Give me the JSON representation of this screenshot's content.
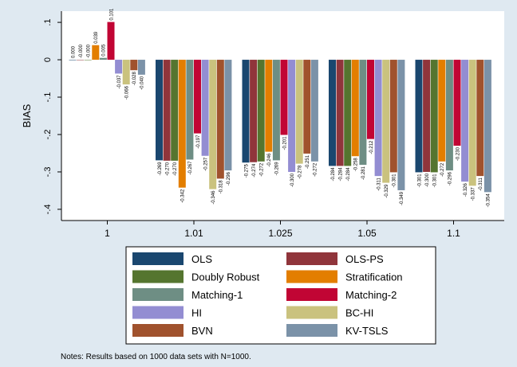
{
  "chart_data": {
    "type": "bar",
    "ylabel": "BIAS",
    "xlabel": "",
    "ylim": [
      -0.43,
      0.13
    ],
    "yticks": [
      0.1,
      0,
      -0.1,
      -0.2,
      -0.3,
      -0.4
    ],
    "ytick_labels": [
      ".1",
      "0",
      "-.1",
      "-.2",
      "-.3",
      "-.4"
    ],
    "categories": [
      "1",
      "1.01",
      "1.025",
      "1.05",
      "1.1"
    ],
    "legend_placement": "bottom",
    "series": [
      {
        "name": "OLS",
        "color": "#1a476f",
        "values": [
          0.0,
          -0.269,
          -0.275,
          -0.284,
          -0.301
        ],
        "labels": [
          "0.000",
          "-0.269",
          "-0.275",
          "-0.284",
          "-0.301"
        ]
      },
      {
        "name": "OLS-PS",
        "color": "#90353b",
        "values": [
          -0.0,
          -0.27,
          -0.274,
          -0.284,
          -0.3
        ],
        "labels": [
          "-0.000",
          "-0.270",
          "-0.274",
          "-0.284",
          "-0.300"
        ]
      },
      {
        "name": "Doubly Robust",
        "color": "#55752f",
        "values": [
          -0.0,
          -0.27,
          -0.272,
          -0.284,
          -0.301
        ],
        "labels": [
          "-0.000",
          "-0.270",
          "-0.272",
          "-0.284",
          "-0.301"
        ]
      },
      {
        "name": "Stratification",
        "color": "#e37e00",
        "values": [
          0.039,
          -0.342,
          -0.246,
          -0.258,
          -0.272
        ],
        "labels": [
          "0.039",
          "-0.342",
          "-0.246",
          "-0.258",
          "-0.272"
        ]
      },
      {
        "name": "Matching-1",
        "color": "#6e8e84",
        "values": [
          0.005,
          -0.267,
          -0.269,
          -0.281,
          -0.296
        ],
        "labels": [
          "0.005",
          "-0.267",
          "-0.269",
          "-0.281",
          "-0.296"
        ]
      },
      {
        "name": "Matching-2",
        "color": "#c10534",
        "values": [
          0.101,
          -0.197,
          -0.201,
          -0.212,
          -0.23
        ],
        "labels": [
          "0.101",
          "-0.197",
          "-0.201",
          "-0.212",
          "-0.230"
        ]
      },
      {
        "name": "HI",
        "color": "#938dd2",
        "values": [
          -0.037,
          -0.257,
          -0.3,
          -0.311,
          -0.326
        ],
        "labels": [
          "-0.037",
          "-0.257",
          "-0.300",
          "-0.311",
          "-0.326"
        ]
      },
      {
        "name": "BC-HI",
        "color": "#cac27e",
        "values": [
          -0.066,
          -0.346,
          -0.278,
          -0.329,
          -0.337
        ],
        "labels": [
          "-0.066",
          "-0.346",
          "-0.278",
          "-0.329",
          "-0.337"
        ]
      },
      {
        "name": "BVN",
        "color": "#a0522d",
        "values": [
          -0.028,
          -0.318,
          -0.251,
          -0.301,
          -0.311
        ],
        "labels": [
          "-0.028",
          "-0.318",
          "-0.251",
          "-0.301",
          "-0.311"
        ]
      },
      {
        "name": "KV-TSLS",
        "color": "#7b92a8",
        "values": [
          -0.04,
          -0.296,
          -0.272,
          -0.349,
          -0.354
        ],
        "labels": [
          "-0.040",
          "-0.296",
          "-0.272",
          "-0.349",
          "-0.354"
        ]
      }
    ]
  },
  "notes": "Notes: Results based on 1000 data sets with N=1000."
}
